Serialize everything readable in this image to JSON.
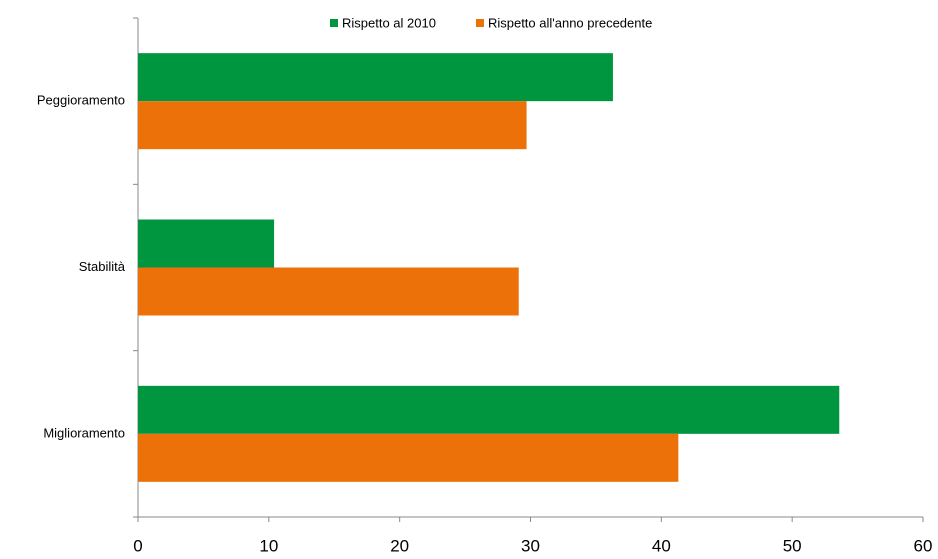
{
  "chart_data": {
    "type": "barh",
    "categories": [
      "Peggioramento",
      "Stabilità",
      "Miglioramento"
    ],
    "series": [
      {
        "name": "Rispetto al 2010",
        "color": "#00953f",
        "values": [
          36.3,
          10.4,
          53.6
        ]
      },
      {
        "name": "Rispetto all'anno precedente",
        "color": "#ec7109",
        "values": [
          29.7,
          29.1,
          41.3
        ]
      }
    ],
    "xlim": [
      0,
      60
    ],
    "xticks": [
      0,
      10,
      20,
      30,
      40,
      50,
      60
    ],
    "grid": false,
    "legend": "top"
  }
}
